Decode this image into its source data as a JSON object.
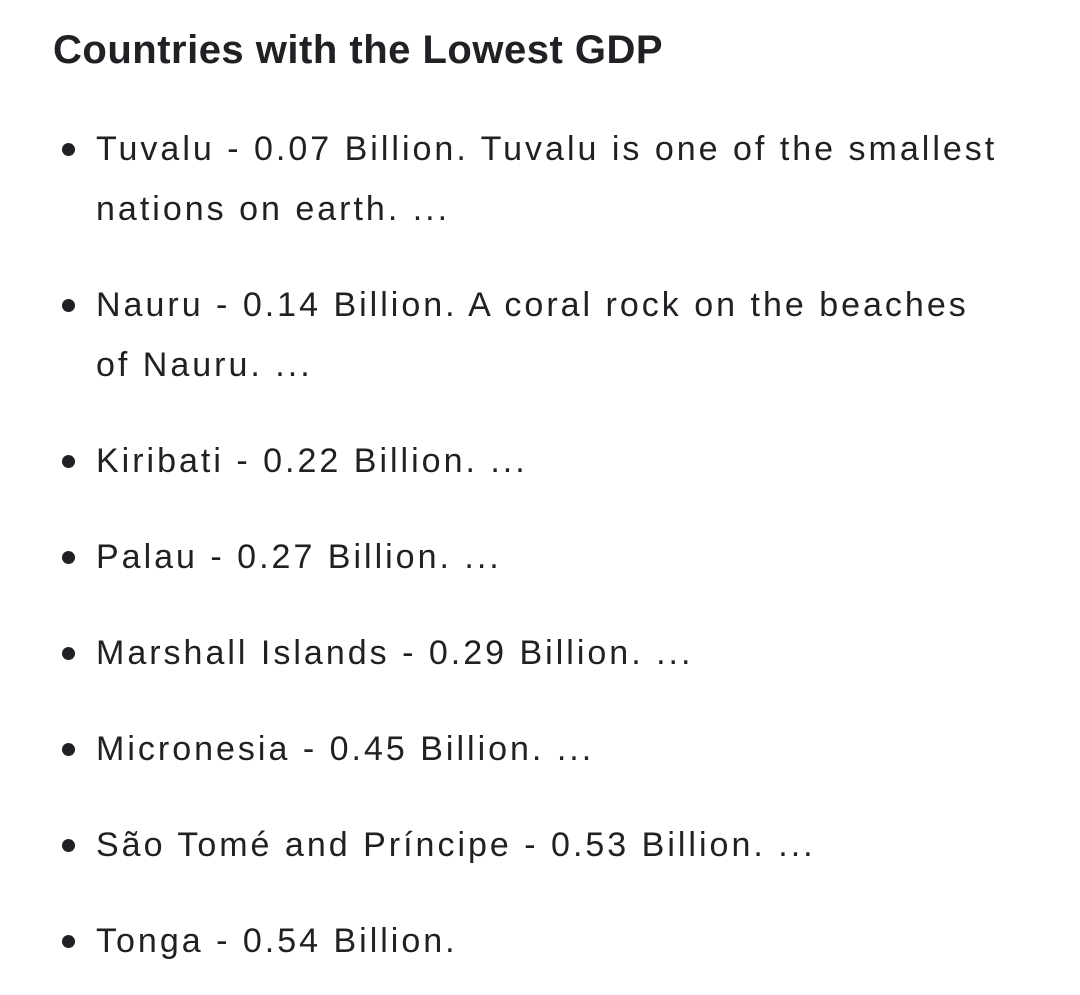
{
  "page": {
    "background_color": "#ffffff",
    "text_color": "#202124"
  },
  "snippet": {
    "title": "Countries with the Lowest GDP",
    "list": {
      "items": [
        "Tuvalu - 0.07 Billion. Tuvalu is one of the smallest nations on earth. ...",
        "Nauru - 0.14 Billion. A coral rock on the beaches of Nauru. ...",
        "Kiribati - 0.22 Billion. ...",
        "Palau - 0.27 Billion. ...",
        "Marshall Islands - 0.29 Billion. ...",
        "Micronesia - 0.45 Billion. ...",
        "São Tomé and Príncipe - 0.53 Billion. ...",
        "Tonga - 0.54 Billion."
      ]
    }
  }
}
